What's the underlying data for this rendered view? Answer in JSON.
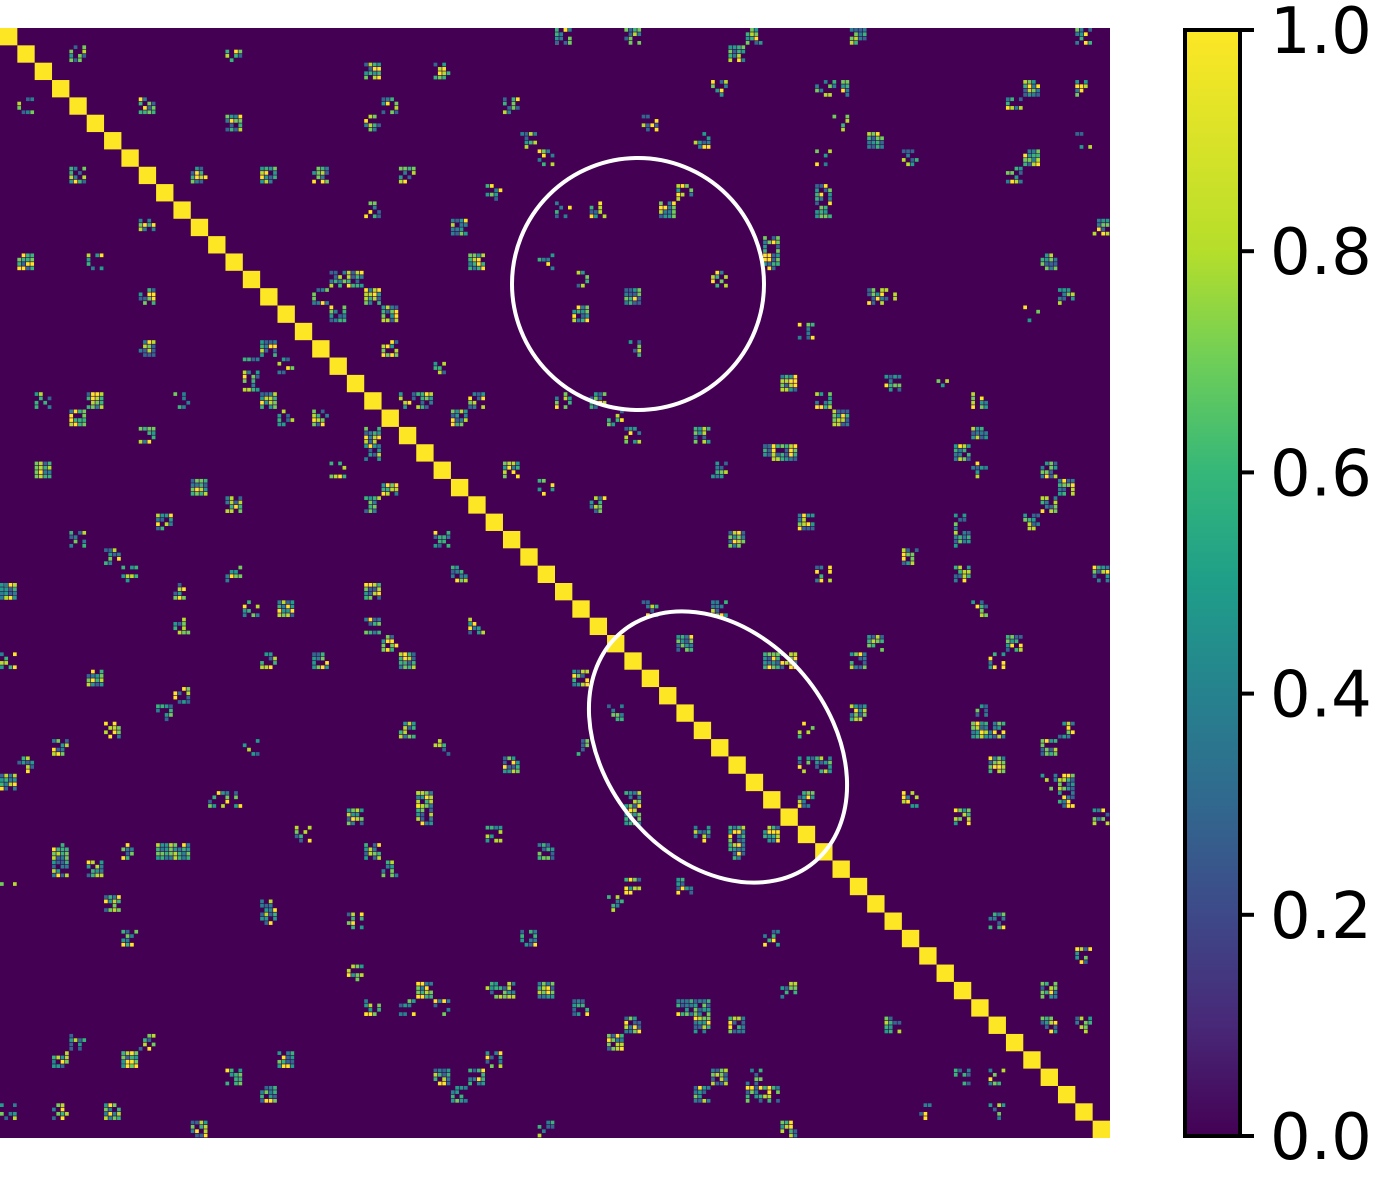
{
  "chart_data": {
    "type": "heatmap",
    "title": "",
    "xlabel": "",
    "ylabel": "",
    "colormap": "viridis",
    "value_range": [
      0,
      1
    ],
    "background_color": "#440154",
    "diagonal_color": "#fde725",
    "diagonal_block_count": 64,
    "diagonal_value": 1.0,
    "off_diagonal_value": 0.0,
    "colorbar": {
      "location": "right",
      "ticks": [
        "0.0",
        "0.2",
        "0.4",
        "0.6",
        "0.8",
        "1.0"
      ],
      "tick_values": [
        0.0,
        0.2,
        0.4,
        0.6,
        0.8,
        1.0
      ]
    },
    "annotations": [
      {
        "shape": "ellipse",
        "color": "#ffffff",
        "region": "upper-middle, off-diagonal block"
      },
      {
        "shape": "ellipse",
        "color": "#ffffff",
        "region": "along the diagonal, lower-middle"
      }
    ]
  }
}
